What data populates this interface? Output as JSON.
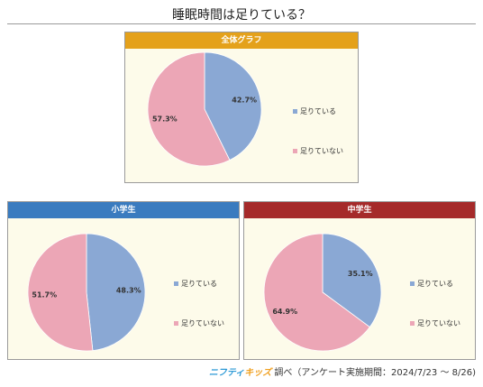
{
  "title": "睡眠時間は足りている？",
  "footer": {
    "logo_part1": "ニフティ",
    "logo_part2": "キッズ",
    "text": "調べ（アンケート実施期間：2024/7/23 ～ 8/26)"
  },
  "colors": {
    "yes": "#8aa8d4",
    "no": "#eca6b6",
    "header_overall": "#e4a11b",
    "header_elementary": "#3a7bbf",
    "header_middle": "#a52a2a"
  },
  "chart_data": [
    {
      "type": "pie",
      "title": "全体グラフ",
      "categories": [
        "足りている",
        "足りていない"
      ],
      "values": [
        42.7,
        57.3
      ],
      "labels": [
        "42.7%",
        "57.3%"
      ],
      "legend": "right"
    },
    {
      "type": "pie",
      "title": "小学生",
      "categories": [
        "足りている",
        "足りていない"
      ],
      "values": [
        48.3,
        51.7
      ],
      "labels": [
        "48.3%",
        "51.7%"
      ],
      "legend": "right"
    },
    {
      "type": "pie",
      "title": "中学生",
      "categories": [
        "足りている",
        "足りていない"
      ],
      "values": [
        35.1,
        64.9
      ],
      "labels": [
        "35.1%",
        "64.9%"
      ],
      "legend": "right"
    }
  ]
}
